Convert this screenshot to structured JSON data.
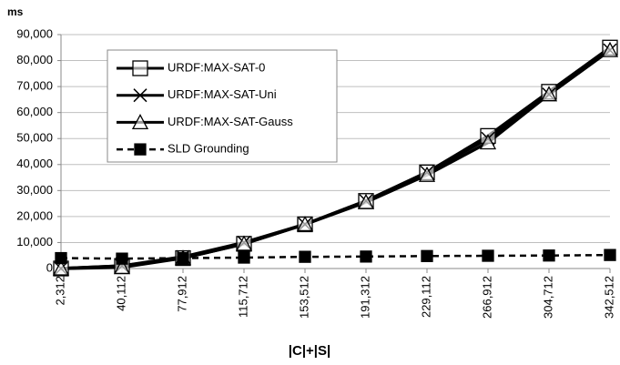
{
  "chart_data": {
    "type": "line",
    "y_label": "ms",
    "x_label": "|C|+|S|",
    "categories": [
      "2,312",
      "40,112",
      "77,912",
      "115,712",
      "153,512",
      "191,312",
      "229,112",
      "266,912",
      "304,712",
      "342,512"
    ],
    "series": [
      {
        "name": "URDF:MAX-SAT-0",
        "color": "#000000",
        "marker": "square",
        "dashed": false,
        "values": [
          0,
          1000,
          4000,
          9500,
          17000,
          26000,
          37000,
          51000,
          68000,
          85000
        ]
      },
      {
        "name": "URDF:MAX-SAT-Uni",
        "color": "#000000",
        "marker": "x",
        "dashed": false,
        "values": [
          0,
          1000,
          4500,
          10000,
          17000,
          26000,
          37000,
          50000,
          67000,
          84000
        ]
      },
      {
        "name": "URDF:MAX-SAT-Gauss",
        "color": "#000000",
        "marker": "triangle",
        "dashed": false,
        "values": [
          0,
          500,
          4000,
          9500,
          17000,
          25500,
          36000,
          48500,
          67000,
          84000
        ]
      },
      {
        "name": "SLD Grounding",
        "color": "#000000",
        "marker": "filled-square",
        "dashed": true,
        "values": [
          4000,
          3800,
          4000,
          4200,
          4500,
          4600,
          4800,
          4900,
          5000,
          5200
        ]
      }
    ],
    "ylim": [
      0,
      90000
    ],
    "yticks": [
      0,
      {
        "value": 10000,
        "label": "10,000"
      },
      {
        "value": 20000,
        "label": "20,000"
      },
      {
        "value": 30000,
        "label": "30,000"
      },
      {
        "value": 40000,
        "label": "40,000"
      },
      {
        "value": 50000,
        "label": "50,000"
      },
      {
        "value": 60000,
        "label": "60,000"
      },
      {
        "value": 70000,
        "label": "70,000"
      },
      {
        "value": 80000,
        "label": "80,000"
      },
      {
        "value": 90000,
        "label": "90,000"
      }
    ],
    "grid": true
  }
}
